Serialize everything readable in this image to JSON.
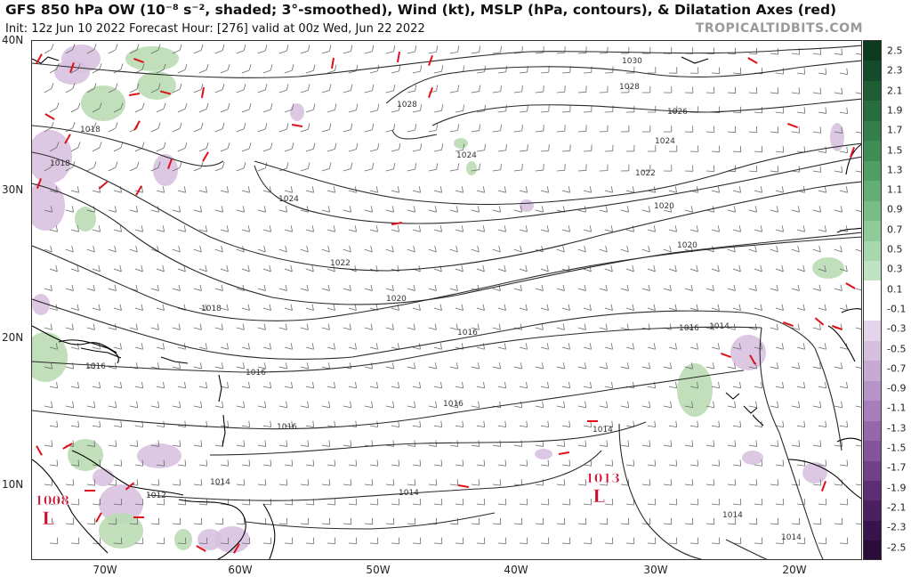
{
  "header": {
    "title": "GFS 850 hPa OW (10⁻⁸ s⁻², shaded; 3°-smoothed), Wind (kt), MSLP (hPa, contours), & Dilatation Axes (red)",
    "subtitle": "Init: 12z Jun 10 2022   Forecast Hour: [276]   valid at 00z Wed, Jun 22 2022",
    "brand": "TROPICALTIDBITS.COM"
  },
  "map": {
    "lat_labels": [
      "40N",
      "30N",
      "20N",
      "10N"
    ],
    "lon_labels": [
      "70W",
      "60W",
      "50W",
      "40W",
      "30W",
      "20W"
    ],
    "isobar_labels": [
      "1030",
      "1028",
      "1028",
      "1026",
      "1024",
      "1024",
      "1024",
      "1022",
      "1022",
      "1020",
      "1020",
      "1020",
      "1018",
      "1018",
      "1018",
      "1016",
      "1016",
      "1016",
      "1016",
      "1016",
      "1016",
      "1014",
      "1014",
      "1014",
      "1014",
      "1014",
      "1014",
      "1012"
    ],
    "lows": [
      {
        "value": "1008",
        "symbol": "L"
      },
      {
        "value": "1013",
        "symbol": "L"
      }
    ],
    "colors": {
      "isobar": "#2a2a2a",
      "coast": "#000000",
      "barb": "#6b6b6b",
      "dilatation": "#e0101a",
      "ow_positive": "#b9dcb2",
      "ow_negative": "#d9c2e0",
      "low_marker": "#c8102e"
    }
  },
  "colorbar": {
    "labels": [
      "2.5",
      "2.3",
      "2.1",
      "1.9",
      "1.7",
      "1.5",
      "1.3",
      "1.1",
      "0.9",
      "0.7",
      "0.5",
      "0.3",
      "0.1",
      "-0.1",
      "-0.3",
      "-0.5",
      "-0.7",
      "-0.9",
      "-1.1",
      "-1.3",
      "-1.5",
      "-1.7",
      "-1.9",
      "-2.1",
      "-2.3",
      "-2.5"
    ],
    "colors": [
      "#0c3a1f",
      "#154a2a",
      "#1e5c34",
      "#286d3f",
      "#337e4a",
      "#3f8e56",
      "#4f9f63",
      "#62ae73",
      "#78bd86",
      "#8fcb99",
      "#a7d8ad",
      "#c0e4c3",
      "#ffffff",
      "#ffffff",
      "#e4d5ea",
      "#d6c0e0",
      "#c7aad4",
      "#b794c7",
      "#a77eba",
      "#9668ab",
      "#84539a",
      "#714088",
      "#5e2e74",
      "#4b1f60",
      "#39134c",
      "#2a0b3a"
    ]
  }
}
